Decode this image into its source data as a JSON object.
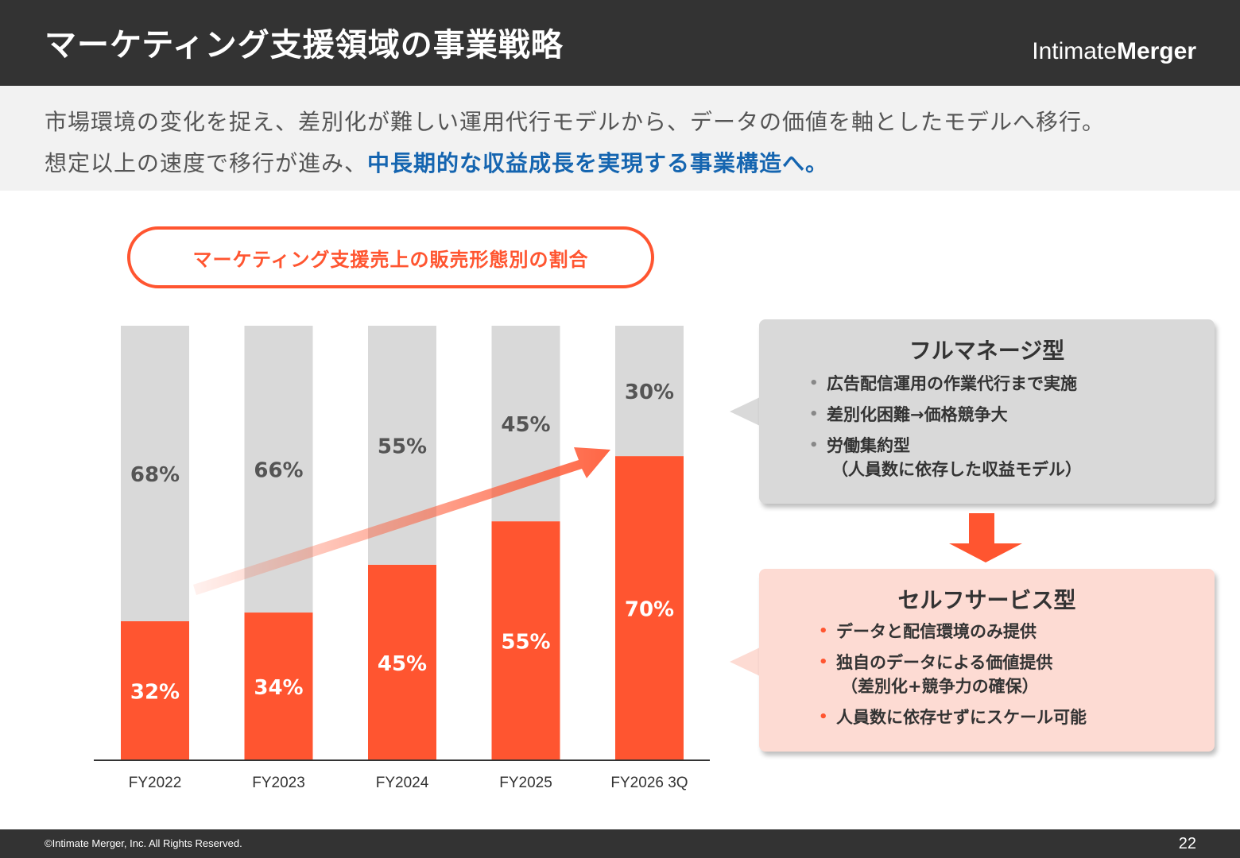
{
  "header": {
    "title": "マーケティング支援領域の事業戦略",
    "logo_light": "Intimate",
    "logo_bold": "Merger"
  },
  "subtitle": {
    "line1": "市場環境の変化を捉え、差別化が難しい運用代行モデルから、データの価値を軸としたモデルへ移行。",
    "line2_plain": "想定以上の速度で移行が進み、",
    "line2_emphasis": "中長期的な収益成長を実現する事業構造へ。"
  },
  "pill_label": "マーケティング支援売上の販売形態別の割合",
  "chart_data": {
    "type": "bar",
    "stacked": true,
    "categories": [
      "FY2022",
      "FY2023",
      "FY2024",
      "FY2025",
      "FY2026 3Q"
    ],
    "series": [
      {
        "values": [
          32,
          34,
          45,
          55,
          70
        ],
        "labels": [
          "32%",
          "34%",
          "45%",
          "55%",
          "70%"
        ],
        "color": "#ff5530"
      },
      {
        "values": [
          68,
          66,
          55,
          45,
          30
        ],
        "labels": [
          "68%",
          "66%",
          "55%",
          "45%",
          "30%"
        ],
        "color": "#d9d9d9"
      }
    ],
    "ylim": [
      0,
      100
    ],
    "trend_arrow": true
  },
  "full_manage": {
    "title": "フルマネージ型",
    "items": [
      {
        "text": "広告配信運用の作業代行まで実施"
      },
      {
        "text": "差別化困難→価格競争大"
      },
      {
        "text": "労働集約型",
        "sub": "（人員数に依存した収益モデル）"
      }
    ]
  },
  "self_service": {
    "title": "セルフサービス型",
    "items": [
      {
        "text": "データと配信環境のみ提供"
      },
      {
        "text": "独自のデータによる価値提供",
        "sub": "（差別化+競争力の確保）"
      },
      {
        "text": "人員数に依存せずにスケール可能"
      }
    ]
  },
  "bullet": "•",
  "footer": {
    "copyright": "©Intimate Merger, Inc. All Rights Reserved.",
    "page": "22"
  },
  "colors": {
    "accent": "#ff5530",
    "dark": "#333333",
    "gray": "#d9d9d9",
    "pink": "#fddbd3",
    "blue": "#1565b0"
  }
}
